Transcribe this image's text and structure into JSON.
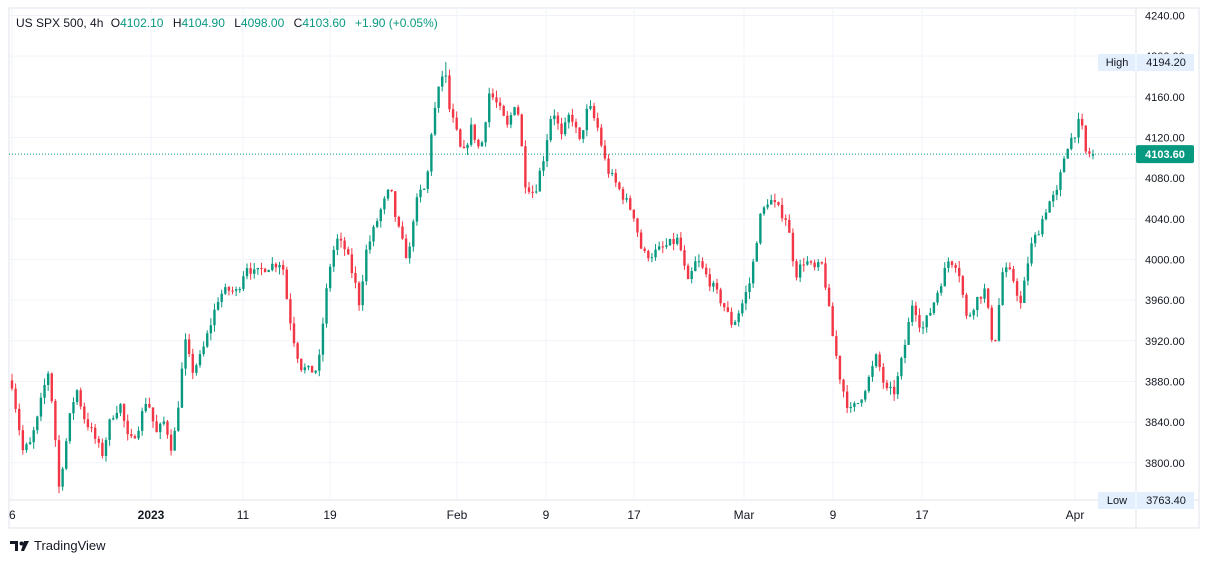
{
  "legend": {
    "symbol": "US SPX 500, 4h",
    "open_label": "O",
    "open": "4102.10",
    "high_label": "H",
    "high": "4104.90",
    "low_label": "L",
    "low": "4098.00",
    "close_label": "C",
    "close": "4103.60",
    "change": "+1.90 (+0.05%)"
  },
  "brand": {
    "name": "TradingView",
    "logo": "tradingview-logo-icon"
  },
  "colors": {
    "up": "#089981",
    "down": "#f23645",
    "price_tag": "#089981",
    "hl_tag": "#e3effd"
  },
  "chart_data": {
    "type": "candlestick",
    "interval": "4h",
    "ylim": [
      3763.4,
      4240
    ],
    "y_ticks": [
      "3800.00",
      "3840.00",
      "3880.00",
      "3920.00",
      "3960.00",
      "4000.00",
      "4040.00",
      "4080.00",
      "4120.00",
      "4160.00",
      "4200.00",
      "4240.00"
    ],
    "x_ticks": [
      "6",
      "2023",
      "11",
      "19",
      "Feb",
      "9",
      "17",
      "Mar",
      "9",
      "17",
      "Apr"
    ],
    "grid": true,
    "current_price": "4103.60",
    "high": {
      "label": "High",
      "value": "4194.20"
    },
    "low": {
      "label": "Low",
      "value": "3763.40"
    },
    "close_path": [
      {
        "t": 0,
        "v": 3878
      },
      {
        "t": 0.3,
        "v": 3845
      },
      {
        "t": 0.6,
        "v": 3812
      },
      {
        "t": 1,
        "v": 3818
      },
      {
        "t": 1.4,
        "v": 3842
      },
      {
        "t": 1.7,
        "v": 3868
      },
      {
        "t": 2,
        "v": 3890
      },
      {
        "t": 2.3,
        "v": 3850
      },
      {
        "t": 2.6,
        "v": 3775
      },
      {
        "t": 3,
        "v": 3820
      },
      {
        "t": 3.3,
        "v": 3855
      },
      {
        "t": 3.6,
        "v": 3872
      },
      {
        "t": 4,
        "v": 3845
      },
      {
        "t": 4.5,
        "v": 3828
      },
      {
        "t": 5,
        "v": 3808
      },
      {
        "t": 5.5,
        "v": 3845
      },
      {
        "t": 6,
        "v": 3858
      },
      {
        "t": 6.5,
        "v": 3818
      },
      {
        "t": 7,
        "v": 3835
      },
      {
        "t": 7.5,
        "v": 3865
      },
      {
        "t": 8,
        "v": 3828
      },
      {
        "t": 8.5,
        "v": 3842
      },
      {
        "t": 8.8,
        "v": 3815
      },
      {
        "t": 9,
        "v": 3825
      },
      {
        "t": 9.3,
        "v": 3868
      },
      {
        "t": 9.6,
        "v": 3920
      },
      {
        "t": 10,
        "v": 3890
      },
      {
        "t": 10.5,
        "v": 3905
      },
      {
        "t": 11,
        "v": 3935
      },
      {
        "t": 11.5,
        "v": 3965
      },
      {
        "t": 12,
        "v": 3970
      },
      {
        "t": 12.5,
        "v": 3968
      },
      {
        "t": 13,
        "v": 3995
      },
      {
        "t": 13.5,
        "v": 3985
      },
      {
        "t": 14,
        "v": 3992
      },
      {
        "t": 15,
        "v": 3998
      },
      {
        "t": 15.3,
        "v": 3955
      },
      {
        "t": 15.6,
        "v": 3925
      },
      {
        "t": 16,
        "v": 3895
      },
      {
        "t": 16.5,
        "v": 3890
      },
      {
        "t": 17,
        "v": 3892
      },
      {
        "t": 17.3,
        "v": 3945
      },
      {
        "t": 17.6,
        "v": 3990
      },
      {
        "t": 18,
        "v": 4020
      },
      {
        "t": 18.5,
        "v": 4010
      },
      {
        "t": 19,
        "v": 3980
      },
      {
        "t": 19.3,
        "v": 3955
      },
      {
        "t": 19.6,
        "v": 4005
      },
      {
        "t": 20,
        "v": 4025
      },
      {
        "t": 20.5,
        "v": 4050
      },
      {
        "t": 21,
        "v": 4070
      },
      {
        "t": 21.3,
        "v": 4040
      },
      {
        "t": 21.6,
        "v": 4020
      },
      {
        "t": 22,
        "v": 3998
      },
      {
        "t": 22.3,
        "v": 4045
      },
      {
        "t": 22.6,
        "v": 4065
      },
      {
        "t": 23,
        "v": 4070
      },
      {
        "t": 23.3,
        "v": 4130
      },
      {
        "t": 23.6,
        "v": 4160
      },
      {
        "t": 24,
        "v": 4190
      },
      {
        "t": 24.3,
        "v": 4145
      },
      {
        "t": 24.6,
        "v": 4130
      },
      {
        "t": 25,
        "v": 4100
      },
      {
        "t": 25.5,
        "v": 4130
      },
      {
        "t": 26,
        "v": 4105
      },
      {
        "t": 26.5,
        "v": 4165
      },
      {
        "t": 27,
        "v": 4150
      },
      {
        "t": 27.5,
        "v": 4130
      },
      {
        "t": 28,
        "v": 4160
      },
      {
        "t": 28.5,
        "v": 4075
      },
      {
        "t": 29,
        "v": 4065
      },
      {
        "t": 29.5,
        "v": 4100
      },
      {
        "t": 30,
        "v": 4150
      },
      {
        "t": 30.5,
        "v": 4120
      },
      {
        "t": 31,
        "v": 4145
      },
      {
        "t": 31.5,
        "v": 4115
      },
      {
        "t": 32,
        "v": 4152
      },
      {
        "t": 32.5,
        "v": 4130
      },
      {
        "t": 33,
        "v": 4090
      },
      {
        "t": 33.5,
        "v": 4075
      },
      {
        "t": 34,
        "v": 4060
      },
      {
        "t": 34.5,
        "v": 4045
      },
      {
        "t": 35,
        "v": 4005
      },
      {
        "t": 35.5,
        "v": 4005
      },
      {
        "t": 36,
        "v": 4010
      },
      {
        "t": 36.5,
        "v": 4015
      },
      {
        "t": 37,
        "v": 4020
      },
      {
        "t": 37.5,
        "v": 3975
      },
      {
        "t": 38,
        "v": 4000
      },
      {
        "t": 38.5,
        "v": 3985
      },
      {
        "t": 39,
        "v": 3970
      },
      {
        "t": 39.5,
        "v": 3955
      },
      {
        "t": 40,
        "v": 3935
      },
      {
        "t": 40.5,
        "v": 3955
      },
      {
        "t": 41,
        "v": 3980
      },
      {
        "t": 41.5,
        "v": 4040
      },
      {
        "t": 42,
        "v": 4060
      },
      {
        "t": 42.5,
        "v": 4050
      },
      {
        "t": 43,
        "v": 4040
      },
      {
        "t": 43.5,
        "v": 3985
      },
      {
        "t": 44,
        "v": 4000
      },
      {
        "t": 44.5,
        "v": 3990
      },
      {
        "t": 45,
        "v": 3995
      },
      {
        "t": 45.5,
        "v": 3930
      },
      {
        "t": 46,
        "v": 3880
      },
      {
        "t": 46.5,
        "v": 3850
      },
      {
        "t": 47,
        "v": 3860
      },
      {
        "t": 47.5,
        "v": 3880
      },
      {
        "t": 48,
        "v": 3905
      },
      {
        "t": 48.5,
        "v": 3870
      },
      {
        "t": 49,
        "v": 3870
      },
      {
        "t": 49.5,
        "v": 3910
      },
      {
        "t": 50,
        "v": 3960
      },
      {
        "t": 50.5,
        "v": 3930
      },
      {
        "t": 51,
        "v": 3950
      },
      {
        "t": 51.5,
        "v": 3975
      },
      {
        "t": 52,
        "v": 4000
      },
      {
        "t": 52.5,
        "v": 3995
      },
      {
        "t": 53,
        "v": 3940
      },
      {
        "t": 53.5,
        "v": 3960
      },
      {
        "t": 54,
        "v": 3970
      },
      {
        "t": 54.5,
        "v": 3910
      },
      {
        "t": 55,
        "v": 3990
      },
      {
        "t": 55.5,
        "v": 3985
      },
      {
        "t": 56,
        "v": 3955
      },
      {
        "t": 56.5,
        "v": 4010
      },
      {
        "t": 57,
        "v": 4030
      },
      {
        "t": 57.5,
        "v": 4055
      },
      {
        "t": 58,
        "v": 4065
      },
      {
        "t": 58.5,
        "v": 4110
      },
      {
        "t": 59,
        "v": 4125
      },
      {
        "t": 59.3,
        "v": 4138
      },
      {
        "t": 59.6,
        "v": 4105
      },
      {
        "t": 60,
        "v": 4103.6
      }
    ]
  }
}
